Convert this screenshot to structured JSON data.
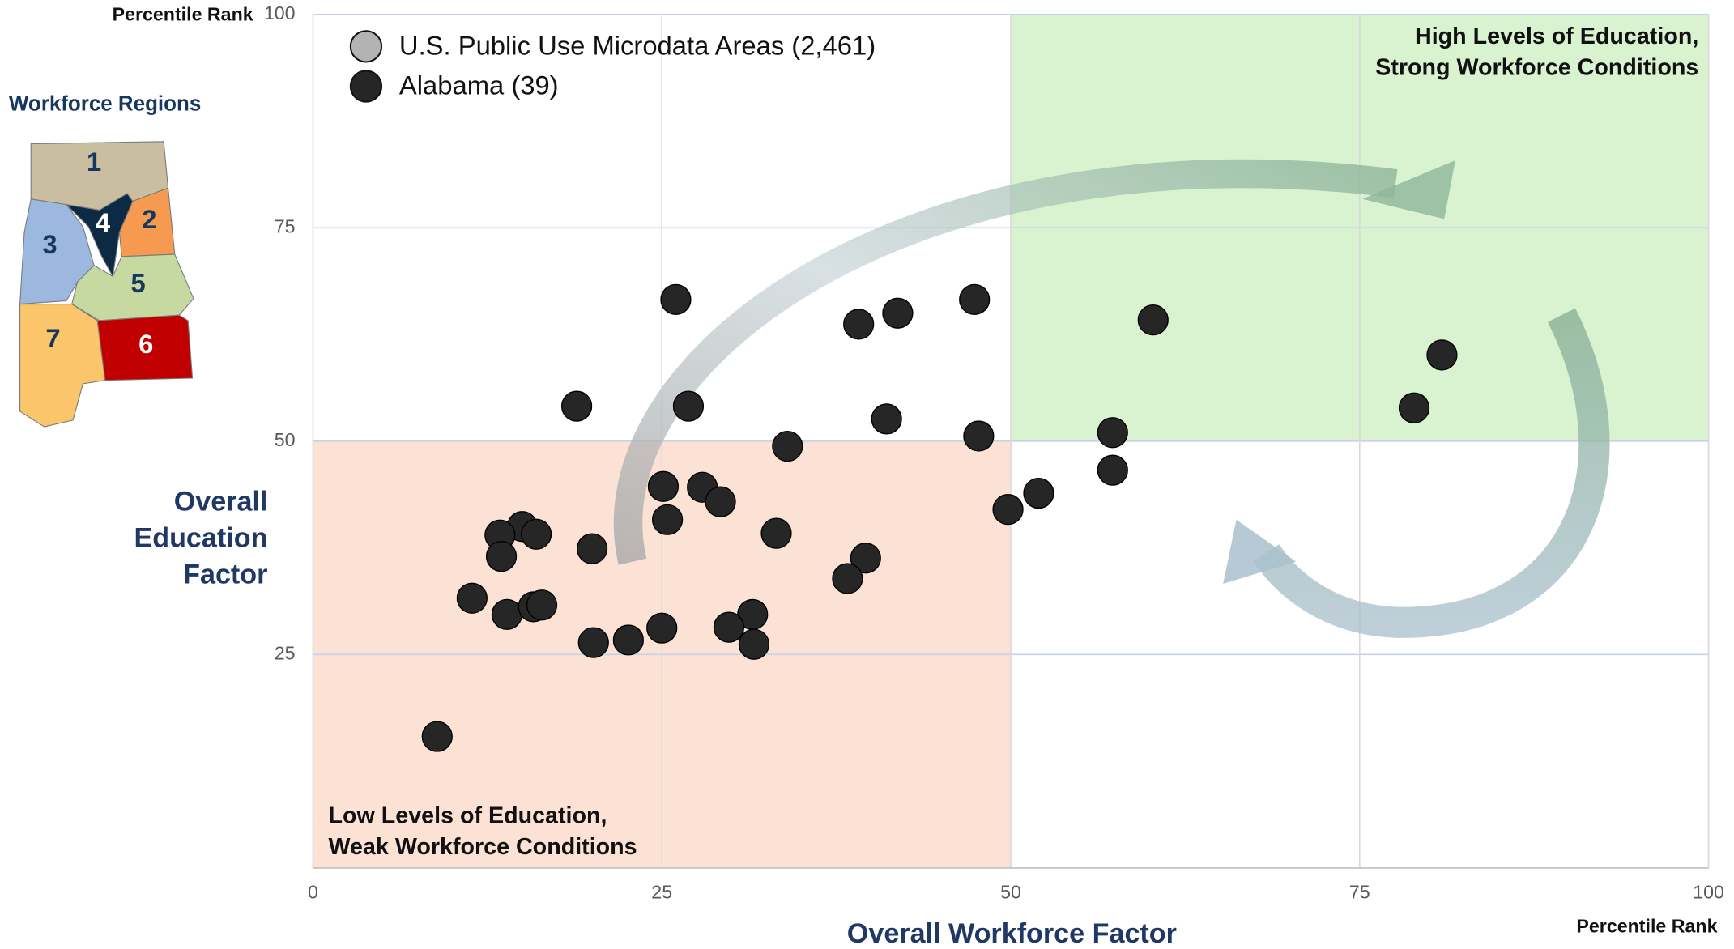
{
  "chart_data": {
    "type": "scatter",
    "x_label": "Overall Workforce Factor",
    "y_label": [
      "Overall",
      "Education",
      "Factor"
    ],
    "x_unit_label": "Percentile Rank",
    "y_unit_label": "Percentile Rank",
    "xlim": [
      0,
      100
    ],
    "ylim": [
      0,
      100
    ],
    "xticks": [
      0,
      25,
      50,
      75,
      100
    ],
    "yticks": [
      25,
      50,
      75,
      100
    ],
    "grid": true,
    "regions": [
      {
        "label": [
          "Low Levels of Education,",
          "Weak Workforce Conditions"
        ],
        "xlim": [
          0,
          50
        ],
        "ylim": [
          0,
          50
        ],
        "color": "#fbe2d5",
        "corner": "bottom-left"
      },
      {
        "label": [
          "High Levels of Education,",
          "Strong Workforce Conditions"
        ],
        "xlim": [
          50,
          100
        ],
        "ylim": [
          50,
          100
        ],
        "color": "#d9f2d0",
        "corner": "top-right"
      }
    ],
    "series": [
      {
        "name": "U.S. Public Use Microdata Areas (2,461)",
        "color": "#b3b3b3",
        "x": [],
        "values": []
      },
      {
        "name": "Alabama (39)",
        "color": "#262626",
        "x": [
          26.0,
          18.9,
          26.9,
          39.1,
          41.9,
          47.4,
          60.2,
          80.9,
          78.9,
          41.1,
          47.7,
          57.3,
          57.3,
          52.0,
          49.8,
          34.0,
          25.1,
          27.9,
          29.2,
          25.4,
          33.2,
          20.0,
          15.0,
          13.4,
          16.0,
          13.5,
          39.6,
          38.3,
          11.4,
          13.9,
          15.8,
          16.4,
          31.5,
          29.8,
          25.0,
          20.1,
          22.6,
          31.6,
          8.9
        ],
        "values": [
          66.6,
          54.1,
          54.1,
          63.7,
          65.0,
          66.6,
          64.2,
          60.1,
          53.9,
          52.6,
          50.6,
          51.0,
          46.6,
          43.9,
          42.0,
          49.4,
          44.7,
          44.6,
          42.9,
          40.8,
          39.2,
          37.4,
          40.0,
          39.0,
          39.1,
          36.5,
          36.3,
          33.9,
          31.6,
          29.7,
          30.6,
          30.8,
          29.7,
          28.2,
          28.1,
          26.4,
          26.7,
          26.2,
          15.4
        ]
      }
    ]
  },
  "inset_map": {
    "title": "Workforce Regions",
    "regions": [
      "1",
      "2",
      "3",
      "4",
      "5",
      "6",
      "7"
    ]
  }
}
